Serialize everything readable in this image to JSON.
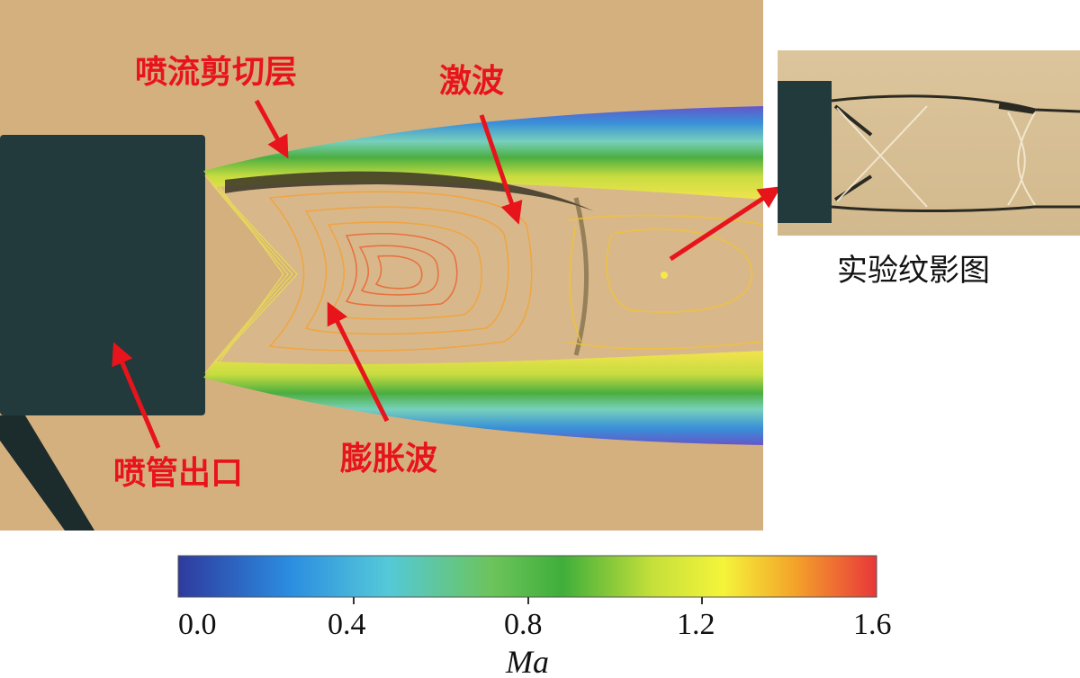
{
  "labels": {
    "shear_layer": "喷流剪切层",
    "shock": "激波",
    "nozzle_exit": "喷管出口",
    "expansion": "膨胀波",
    "schlieren": "实验纹影图"
  },
  "colorbar": {
    "variable": "Ma",
    "ticks": [
      "0.0",
      "0.4",
      "0.8",
      "1.2",
      "1.6"
    ],
    "min": 0.0,
    "max": 1.6,
    "colors": [
      "#2e3a9e",
      "#2b8de0",
      "#54c9d8",
      "#6cc45a",
      "#3fae3b",
      "#c6e03a",
      "#f4f43a",
      "#f4a52a",
      "#e8373a"
    ]
  },
  "colors": {
    "background": "#d4b07f",
    "nozzle": "#223a3c",
    "annotation": "#e8141c"
  }
}
